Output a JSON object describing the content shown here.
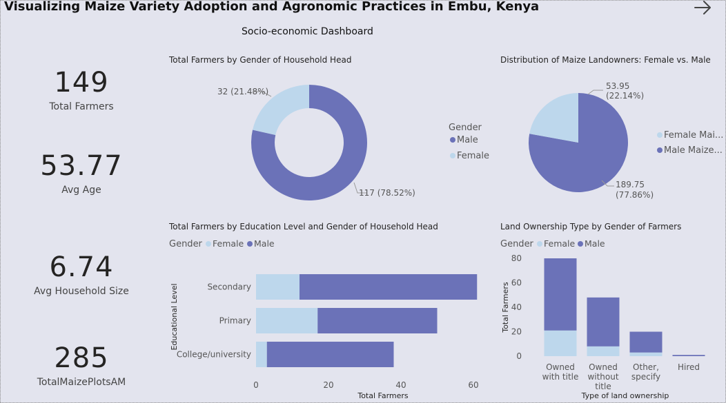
{
  "header": {
    "title": "Visualizing Maize Variety Adoption and Agronomic Practices in Embu, Kenya",
    "subtitle": "Socio-economic Dashboard"
  },
  "colors": {
    "male": "#6b72b8",
    "female": "#bdd7ec",
    "background": "#e3e4ee"
  },
  "kpis": [
    {
      "value": "149",
      "label": "Total Farmers"
    },
    {
      "value": "53.77",
      "label": "Avg Age"
    },
    {
      "value": "6.74",
      "label": "Avg Household Size"
    },
    {
      "value": "285",
      "label": "TotalMaizePlotsAM"
    }
  ],
  "chart_data": [
    {
      "type": "pie",
      "variant": "donut",
      "title": "Total Farmers by Gender of Household Head",
      "legend_title": "Gender",
      "legend_position": "right",
      "slices": [
        {
          "name": "Male",
          "value": 117,
          "label": "117 (78.52%)"
        },
        {
          "name": "Female",
          "value": 32,
          "label": "32 (21.48%)"
        }
      ]
    },
    {
      "type": "pie",
      "title": "Distribution of Maize Landowners: Female vs. Male",
      "legend_position": "right",
      "slices": [
        {
          "name": "Male Maize...",
          "value": 189.75,
          "label": "189.75",
          "pct": "(77.86%)"
        },
        {
          "name": "Female Mai...",
          "value": 53.95,
          "label": "53.95",
          "pct": "(22.14%)"
        }
      ]
    },
    {
      "type": "bar",
      "orientation": "horizontal",
      "stacked": true,
      "title": "Total Farmers by Education Level and Gender of Household Head",
      "legend_title": "Gender",
      "legend_position": "top-left",
      "categories": [
        "Secondary",
        "Primary",
        "College/university"
      ],
      "series": [
        {
          "name": "Female",
          "values": [
            12,
            17,
            3
          ]
        },
        {
          "name": "Male",
          "values": [
            49,
            33,
            35
          ]
        }
      ],
      "xlabel": "Total Farmers",
      "ylabel": "Educational Level",
      "xlim": [
        0,
        60
      ],
      "xticks": [
        "0",
        "20",
        "40",
        "60"
      ],
      "grid": false
    },
    {
      "type": "bar",
      "orientation": "vertical",
      "stacked": true,
      "title": "Land Ownership Type by Gender of Farmers",
      "legend_title": "Gender",
      "legend_position": "top-left",
      "categories": [
        [
          "Owned",
          "with title"
        ],
        [
          "Owned",
          "without",
          "title"
        ],
        [
          "Other,",
          "specify"
        ],
        [
          "Hired"
        ]
      ],
      "series": [
        {
          "name": "Female",
          "values": [
            21,
            8,
            3,
            0
          ]
        },
        {
          "name": "Male",
          "values": [
            59,
            40,
            17,
            1
          ]
        }
      ],
      "xlabel": "Type of land ownership",
      "ylabel": "Total Farmers",
      "ylim": [
        0,
        80
      ],
      "yticks": [
        "0",
        "20",
        "40",
        "60",
        "80"
      ],
      "grid": false
    }
  ]
}
